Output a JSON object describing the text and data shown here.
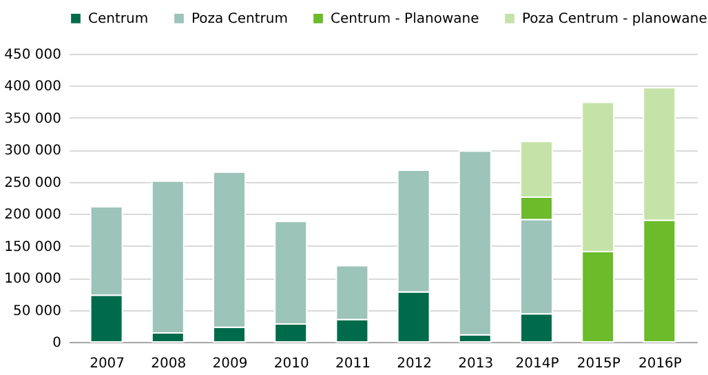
{
  "chart_data": {
    "type": "bar",
    "stacked": true,
    "categories": [
      "2007",
      "2008",
      "2009",
      "2010",
      "2011",
      "2012",
      "2013",
      "2014P",
      "2015P",
      "2016P"
    ],
    "series": [
      {
        "name": "Centrum",
        "color": "#006b4a",
        "values": [
          73000,
          14000,
          23000,
          28000,
          35000,
          78000,
          11000,
          44000,
          null,
          null
        ]
      },
      {
        "name": "Poza Centrum",
        "color": "#9cc4b8",
        "values": [
          138000,
          237000,
          242000,
          160000,
          84000,
          190000,
          287000,
          147000,
          null,
          null
        ]
      },
      {
        "name": "Centrum - Planowane",
        "color": "#6bbb2a",
        "values": [
          null,
          null,
          null,
          null,
          null,
          null,
          null,
          35000,
          141000,
          190000
        ]
      },
      {
        "name": "Poza Centrum - planowane",
        "color": "#c5e3a8",
        "values": [
          null,
          null,
          null,
          null,
          null,
          null,
          null,
          87000,
          233000,
          207000
        ]
      }
    ],
    "ylim": [
      0,
      450000
    ],
    "yticks": [
      {
        "value": 0,
        "label": "0"
      },
      {
        "value": 50000,
        "label": "50 000"
      },
      {
        "value": 100000,
        "label": "100 000"
      },
      {
        "value": 150000,
        "label": "150 000"
      },
      {
        "value": 200000,
        "label": "200 000"
      },
      {
        "value": 250000,
        "label": "250 000"
      },
      {
        "value": 300000,
        "label": "300 000"
      },
      {
        "value": 350000,
        "label": "350 000"
      },
      {
        "value": 400000,
        "label": "400 000"
      },
      {
        "value": 450000,
        "label": "450 000"
      }
    ],
    "grid": "y",
    "legend": "top left"
  }
}
